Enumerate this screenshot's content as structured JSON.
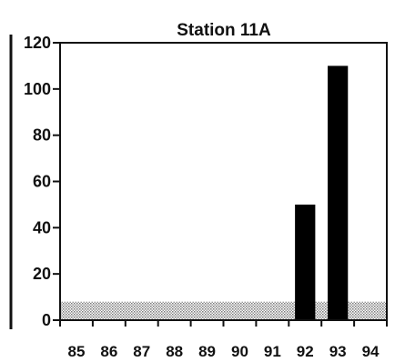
{
  "chart_data": {
    "type": "bar",
    "title": "Station 11A",
    "xlabel": "",
    "ylabel": "",
    "categories": [
      "85",
      "86",
      "87",
      "88",
      "89",
      "90",
      "91",
      "92",
      "93",
      "94"
    ],
    "values": [
      0,
      0,
      0,
      0,
      0,
      0,
      0,
      50,
      110,
      0
    ],
    "ylim": [
      0,
      120
    ],
    "yticks": [
      "0",
      "20",
      "40",
      "60",
      "80",
      "100",
      "120"
    ],
    "band": {
      "from": 0,
      "to": 8,
      "pattern": "stippled"
    },
    "grid": false,
    "legend": "none",
    "bar_color": "#000000",
    "band_color": "#9a9a9a"
  }
}
